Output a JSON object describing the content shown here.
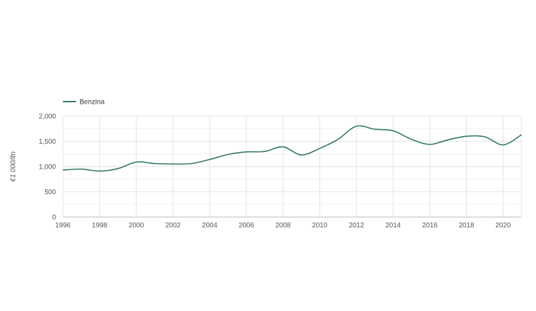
{
  "chart_data": {
    "type": "line",
    "ylabel": "€1 000/ltn",
    "xlabel": "",
    "ylim": [
      0,
      2000
    ],
    "xlim": [
      1996,
      2021
    ],
    "yticks": [
      0,
      500,
      1000,
      1500,
      2000
    ],
    "ytick_labels": [
      "0",
      "500",
      "1,000",
      "1,500",
      "2,000"
    ],
    "xticks": [
      1996,
      1998,
      2000,
      2002,
      2004,
      2006,
      2008,
      2010,
      2012,
      2014,
      2016,
      2018,
      2020
    ],
    "xtick_labels": [
      "1996",
      "1998",
      "2000",
      "2002",
      "2004",
      "2006",
      "2008",
      "2010",
      "2012",
      "2014",
      "2016",
      "2018",
      "2020"
    ],
    "grid": true,
    "legend_position": "top-left",
    "series": [
      {
        "name": "Benzina",
        "color": "#2e7a60",
        "x": [
          1996,
          1997,
          1998,
          1999,
          2000,
          2001,
          2002,
          2003,
          2004,
          2005,
          2006,
          2007,
          2008,
          2009,
          2010,
          2011,
          2012,
          2013,
          2014,
          2015,
          2016,
          2017,
          2018,
          2019,
          2020,
          2021
        ],
        "values": [
          930,
          950,
          910,
          960,
          1090,
          1060,
          1050,
          1060,
          1140,
          1240,
          1290,
          1300,
          1390,
          1230,
          1360,
          1540,
          1800,
          1740,
          1710,
          1540,
          1440,
          1530,
          1600,
          1590,
          1430,
          1630
        ]
      }
    ]
  }
}
